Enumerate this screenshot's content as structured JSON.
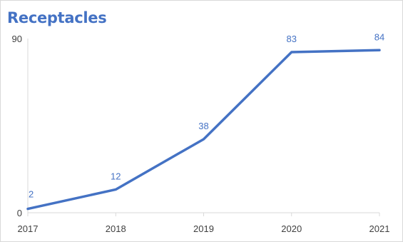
{
  "chart_data": {
    "type": "line",
    "title": "Receptacles",
    "xlabel": "",
    "ylabel": "",
    "x": [
      "2017",
      "2018",
      "2019",
      "2020",
      "2021"
    ],
    "series": [
      {
        "values": [
          2,
          12,
          38,
          83,
          84
        ],
        "color": "#4472c4"
      }
    ],
    "ylim": [
      0,
      90
    ],
    "y_ticks": [
      "0",
      "90"
    ],
    "grid": false,
    "legend": "none",
    "data_labels": true
  }
}
